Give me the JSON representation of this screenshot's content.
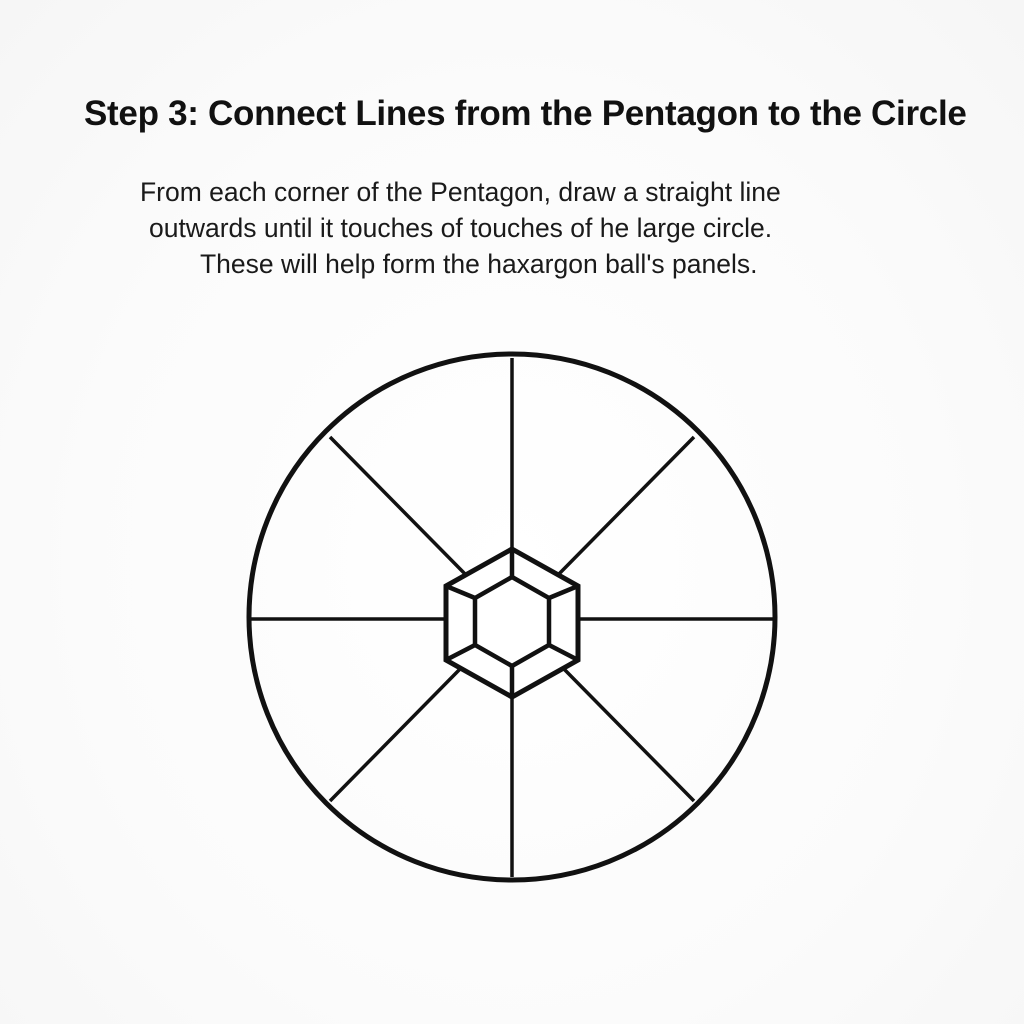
{
  "heading": {
    "title": "Step 3: Connect Lines from the Pentagon to the Circle"
  },
  "instructions": {
    "lines": [
      "From each corner of the Pentagon, draw a straight line",
      "outwards until it touches of touches of he large circle.",
      "These will help form the haxargon ball's panels."
    ]
  },
  "diagram": {
    "shapes": [
      "outer-circle",
      "radial-lines",
      "outer-hexagon",
      "inner-hexagon"
    ],
    "radial_line_count": 8,
    "stroke_color": "#111111",
    "fill_color": "#ffffff"
  }
}
